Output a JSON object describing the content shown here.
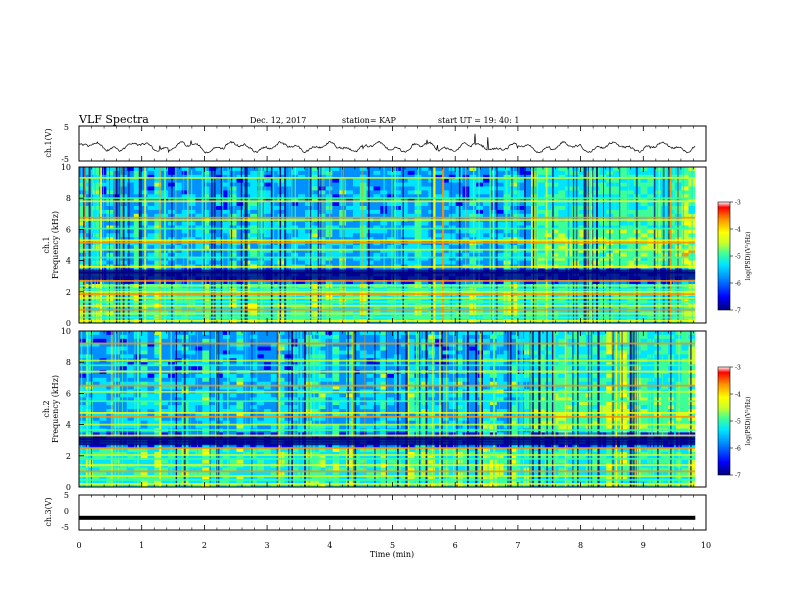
{
  "header": {
    "title": "VLF Spectra",
    "date": "Dec. 12, 2017",
    "station": "station= KAP",
    "start": "start  UT =   19: 40: 1"
  },
  "colors": {
    "colormap": [
      "#00007a",
      "#0000ff",
      "#0090ff",
      "#00e5ff",
      "#3cff9a",
      "#c8ff2a",
      "#ffff00",
      "#ff9000",
      "#ff0000",
      "#ffffff"
    ],
    "trace": "#000000"
  },
  "chart_data": [
    {
      "type": "line",
      "id": "ch1-waveform",
      "ylabel": "ch.1(V)",
      "yticks": [
        "5",
        "-5"
      ],
      "ylim": [
        -5,
        5
      ],
      "xlim": [
        0,
        10
      ],
      "x_extent": 9.83,
      "amplitude_approx": 1.5
    },
    {
      "type": "heatmap",
      "id": "ch1-spectrogram",
      "ylabel": "ch.1",
      "ylabel2": "Frequency (kHz)",
      "yticks": [
        "0",
        "2",
        "4",
        "6",
        "8",
        "10"
      ],
      "ylim": [
        0,
        10
      ],
      "xlim": [
        0,
        10
      ],
      "x_extent": 9.83,
      "colorbar": {
        "label": "log(PSD)(V²/Hz)",
        "ticks": [
          "-3",
          "-4",
          "-5",
          "-6",
          "-7"
        ],
        "range": [
          -7,
          -3
        ]
      },
      "background_band_freqs_khz": [
        0.15,
        0.35,
        0.6,
        0.85,
        1.1,
        1.35,
        1.6,
        1.85,
        2.0,
        2.15,
        2.4,
        2.7,
        3.6,
        4.2,
        4.7,
        5.15,
        5.3,
        6.05,
        6.6,
        6.75,
        7.8,
        8.0,
        9.3
      ],
      "dark_band_freqs_khz": [
        2.9,
        3.15,
        3.3
      ],
      "noise_burst_region": {
        "t_start": 7.1,
        "t_end": 9.8,
        "f_start": 3.5,
        "f_end": 6.0
      }
    },
    {
      "type": "heatmap",
      "id": "ch2-spectrogram",
      "ylabel": "ch.2",
      "ylabel2": "Frequency (kHz)",
      "yticks": [
        "0",
        "2",
        "4",
        "6",
        "8",
        "10"
      ],
      "ylim": [
        0,
        10
      ],
      "xlim": [
        0,
        10
      ],
      "x_extent": 9.83,
      "colorbar": {
        "label": "log(PSD)(V²/Hz)",
        "ticks": [
          "-3",
          "-4",
          "-5",
          "-6",
          "-7"
        ],
        "range": [
          -7,
          -3
        ]
      },
      "background_band_freqs_khz": [
        0.2,
        0.45,
        0.7,
        1.0,
        1.4,
        1.8,
        2.05,
        2.5,
        3.3,
        3.65,
        4.0,
        4.5,
        4.75,
        5.5,
        6.1,
        6.5,
        7.4,
        7.8,
        8.1,
        9.2
      ],
      "dark_band_freqs_khz": [
        2.8,
        3.0,
        3.15
      ],
      "noise_burst_region": {
        "t_start": 7.1,
        "t_end": 9.8,
        "f_start": 3.4,
        "f_end": 6.0
      }
    },
    {
      "type": "line",
      "id": "ch3-waveform",
      "ylabel": "ch.3(V)",
      "yticks": [
        "5",
        "0",
        "-5"
      ],
      "ylim": [
        -5,
        5
      ],
      "xlim": [
        0,
        10
      ],
      "x_extent": 9.83,
      "constant_level": -1.5
    }
  ],
  "xaxis": {
    "ticks": [
      "0",
      "1",
      "2",
      "3",
      "4",
      "5",
      "6",
      "7",
      "8",
      "9",
      "10"
    ],
    "label": "Time  (min)"
  }
}
